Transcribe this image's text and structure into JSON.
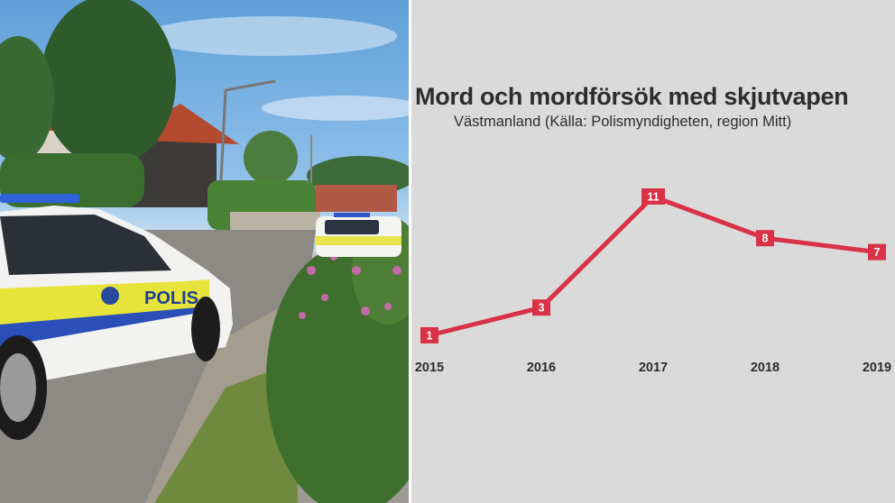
{
  "chart_data": {
    "type": "line",
    "title": "Mord och mordförsök med skjutvapen",
    "subtitle": "Västmanland  (Källa: Polismyndigheten, region Mitt)",
    "x": [
      "2015",
      "2016",
      "2017",
      "2018",
      "2019"
    ],
    "values": [
      1,
      3,
      11,
      8,
      7
    ],
    "xlabel": "",
    "ylabel": "",
    "ylim": [
      0,
      12
    ],
    "grid": false,
    "data_labels": true,
    "line_color": "#d93247"
  }
}
